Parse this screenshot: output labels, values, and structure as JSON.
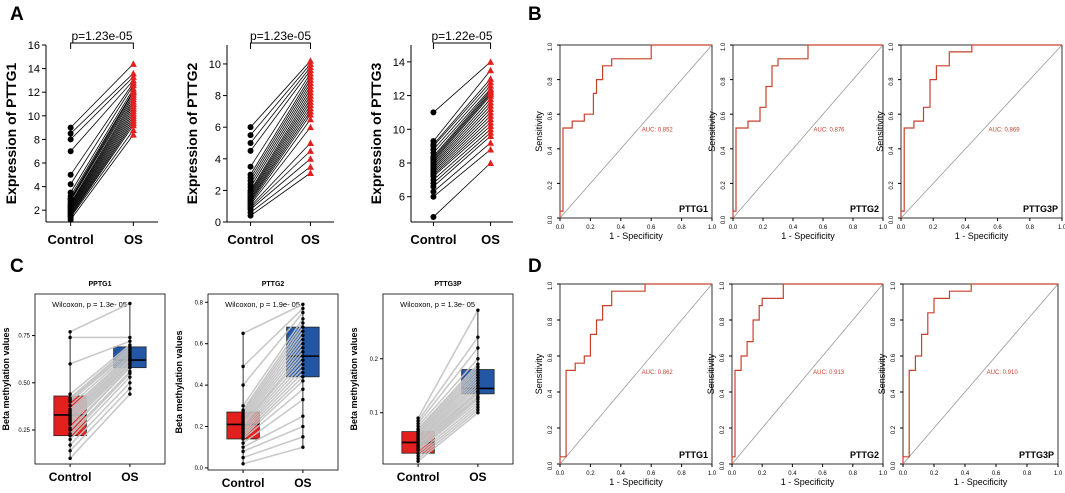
{
  "panels": {
    "A": "A",
    "B": "B",
    "C": "C",
    "D": "D"
  },
  "chart_data": [
    {
      "id": "A1",
      "type": "scatter",
      "subtype": "paired-dot",
      "title": "",
      "ylabel": "Expression of PTTG1",
      "xlabel": "",
      "categories": [
        "Control",
        "OS"
      ],
      "ylim": [
        1,
        16
      ],
      "yticks": [
        2,
        4,
        6,
        8,
        10,
        12,
        14,
        16
      ],
      "p_label": "p=1.23e-05",
      "control": [
        9,
        8.5,
        8,
        7,
        5,
        4.2,
        3.5,
        3.2,
        3,
        2.9,
        2.8,
        2.6,
        2.5,
        2.4,
        2.3,
        2.2,
        2.1,
        2,
        1.9,
        1.8,
        1.7,
        1.6,
        1.5,
        1.4,
        1.2
      ],
      "os": [
        14.4,
        13.6,
        13.3,
        13,
        12.8,
        12.6,
        12.3,
        12.1,
        12,
        11.8,
        11.6,
        11.4,
        11.2,
        11,
        10.8,
        10.6,
        10.4,
        10.2,
        10,
        9.8,
        9.6,
        9.4,
        9.2,
        8.8,
        8.4
      ]
    },
    {
      "id": "A2",
      "type": "scatter",
      "subtype": "paired-dot",
      "title": "",
      "ylabel": "Expression of PTTG2",
      "xlabel": "",
      "categories": [
        "Control",
        "OS"
      ],
      "ylim": [
        0,
        11.2
      ],
      "yticks": [
        0,
        2,
        4,
        6,
        8,
        10
      ],
      "p_label": "p=1.23e-05",
      "control": [
        6,
        5.5,
        5,
        4.5,
        3.5,
        3,
        2.8,
        2.6,
        2.4,
        2.2,
        2,
        1.9,
        1.8,
        1.7,
        1.6,
        1.5,
        1.4,
        1.3,
        1.2,
        1.1,
        1,
        0.9,
        0.8,
        0.6,
        0.4
      ],
      "os": [
        10.2,
        10,
        9.8,
        9.6,
        9.4,
        9.2,
        9,
        8.8,
        8.6,
        8.4,
        8.2,
        8,
        7.8,
        7.6,
        7.4,
        7.2,
        7,
        6.8,
        6.5,
        6,
        5,
        4.5,
        4,
        3.5,
        3.1
      ]
    },
    {
      "id": "A3",
      "type": "scatter",
      "subtype": "paired-dot",
      "title": "",
      "ylabel": "Expression of PTTG3",
      "xlabel": "",
      "categories": [
        "Control",
        "OS"
      ],
      "ylim": [
        4.5,
        15
      ],
      "yticks": [
        6,
        8,
        10,
        12,
        14
      ],
      "p_label": "p=1.22e-05",
      "control": [
        11,
        9.3,
        9.1,
        9,
        8.8,
        8.6,
        8.4,
        8.3,
        8.2,
        8.1,
        8,
        7.9,
        7.8,
        7.7,
        7.6,
        7.5,
        7.4,
        7.3,
        7.2,
        7,
        6.8,
        6.6,
        6.3,
        6,
        4.8
      ],
      "os": [
        14,
        13.5,
        13,
        12.8,
        12.6,
        12.4,
        12.3,
        12.2,
        12.1,
        12,
        11.8,
        11.6,
        11.4,
        11.2,
        11,
        10.8,
        10.6,
        10.4,
        10.2,
        10,
        9.8,
        9.6,
        9.2,
        8.8,
        8
      ]
    },
    {
      "id": "B1",
      "type": "line",
      "subtype": "roc",
      "label": "PTTG1",
      "auc": "AUC: 0.852",
      "xlabel": "1 -  Specificity",
      "ylabel": "Sensitivity",
      "xlim": [
        0,
        1
      ],
      "ylim": [
        0,
        1
      ],
      "xticks": [
        "0.0",
        "0.2",
        "0.4",
        "0.6",
        "0.8",
        "1.0"
      ],
      "yticks": [
        "0.0",
        "0.2",
        "0.4",
        "0.6",
        "0.8",
        "1.0"
      ],
      "x": [
        0,
        0,
        0.02,
        0.02,
        0.08,
        0.08,
        0.16,
        0.16,
        0.22,
        0.22,
        0.24,
        0.24,
        0.28,
        0.28,
        0.34,
        0.34,
        0.6,
        0.6,
        1
      ],
      "y": [
        0,
        0.04,
        0.04,
        0.52,
        0.52,
        0.56,
        0.56,
        0.6,
        0.6,
        0.72,
        0.72,
        0.8,
        0.8,
        0.88,
        0.88,
        0.92,
        0.92,
        1,
        1
      ]
    },
    {
      "id": "B2",
      "type": "line",
      "subtype": "roc",
      "label": "PTTG2",
      "auc": "AUC: 0.876",
      "xlabel": "1 -  Specificity",
      "ylabel": "Sensitivity",
      "xlim": [
        0,
        1
      ],
      "ylim": [
        0,
        1
      ],
      "xticks": [
        "0.0",
        "0.2",
        "0.4",
        "0.6",
        "0.8",
        "1.0"
      ],
      "yticks": [
        "0.0",
        "0.2",
        "0.4",
        "0.6",
        "0.8",
        "1.0"
      ],
      "x": [
        0,
        0,
        0.02,
        0.02,
        0.1,
        0.1,
        0.18,
        0.18,
        0.22,
        0.22,
        0.26,
        0.26,
        0.3,
        0.3,
        0.5,
        0.5,
        1
      ],
      "y": [
        0,
        0.04,
        0.04,
        0.52,
        0.52,
        0.56,
        0.56,
        0.64,
        0.64,
        0.76,
        0.76,
        0.88,
        0.88,
        0.92,
        0.92,
        1,
        1
      ]
    },
    {
      "id": "B3",
      "type": "line",
      "subtype": "roc",
      "label": "PTTG3P",
      "auc": "AUC: 0.869",
      "xlabel": "1 -  Specificity",
      "ylabel": "Sensitivity",
      "xlim": [
        0,
        1
      ],
      "ylim": [
        0,
        1
      ],
      "xticks": [
        "0.0",
        "0.2",
        "0.4",
        "0.6",
        "0.8",
        "1.0"
      ],
      "yticks": [
        "0.0",
        "0.2",
        "0.4",
        "0.6",
        "0.8",
        "1.0"
      ],
      "x": [
        0,
        0,
        0.02,
        0.02,
        0.08,
        0.08,
        0.14,
        0.14,
        0.18,
        0.18,
        0.22,
        0.22,
        0.3,
        0.3,
        0.44,
        0.44,
        1
      ],
      "y": [
        0,
        0.04,
        0.04,
        0.52,
        0.52,
        0.56,
        0.56,
        0.64,
        0.64,
        0.8,
        0.8,
        0.88,
        0.88,
        0.96,
        0.96,
        1,
        1
      ]
    },
    {
      "id": "C1",
      "type": "bar",
      "subtype": "paired-box",
      "title": "PPTG1",
      "ylabel": "Beta methylation values",
      "xlabel": "",
      "categories": [
        "Control",
        "OS"
      ],
      "ylim": [
        0.07,
        0.97
      ],
      "yticks": [
        "0.25",
        "0.50",
        "0.75"
      ],
      "ytick_values": [
        0.25,
        0.5,
        0.75
      ],
      "stat_label": "Wilcoxon, p = 1.3e- 05",
      "boxes": [
        {
          "group": "Control",
          "color": "#e3201e",
          "q1": 0.22,
          "median": 0.33,
          "q3": 0.43,
          "whisker_low": 0.1,
          "whisker_high": 0.77
        },
        {
          "group": "OS",
          "color": "#2357a6",
          "q1": 0.58,
          "median": 0.62,
          "q3": 0.69,
          "whisker_low": 0.44,
          "whisker_high": 0.92
        }
      ],
      "control": [
        0.77,
        0.74,
        0.6,
        0.44,
        0.42,
        0.41,
        0.4,
        0.38,
        0.36,
        0.35,
        0.34,
        0.33,
        0.32,
        0.31,
        0.3,
        0.29,
        0.28,
        0.26,
        0.25,
        0.23,
        0.22,
        0.2,
        0.17,
        0.14,
        0.1
      ],
      "os": [
        0.92,
        0.74,
        0.72,
        0.7,
        0.69,
        0.68,
        0.67,
        0.66,
        0.65,
        0.64,
        0.63,
        0.62,
        0.62,
        0.61,
        0.6,
        0.6,
        0.59,
        0.58,
        0.58,
        0.56,
        0.55,
        0.53,
        0.5,
        0.47,
        0.44
      ]
    },
    {
      "id": "C2",
      "type": "bar",
      "subtype": "paired-box",
      "title": "PTTG2",
      "ylabel": "Beta methylation values",
      "xlabel": "",
      "categories": [
        "Control",
        "OS"
      ],
      "ylim": [
        -0.01,
        0.84
      ],
      "yticks": [
        "0.0",
        "0.2",
        "0.4",
        "0.6",
        "0.8"
      ],
      "ytick_values": [
        0,
        0.2,
        0.4,
        0.6,
        0.8
      ],
      "stat_label": "Wilcoxon, p = 1.9e- 05",
      "boxes": [
        {
          "group": "Control",
          "color": "#e3201e",
          "q1": 0.14,
          "median": 0.21,
          "q3": 0.27,
          "whisker_low": 0.02,
          "whisker_high": 0.65
        },
        {
          "group": "OS",
          "color": "#2357a6",
          "q1": 0.44,
          "median": 0.54,
          "q3": 0.68,
          "whisker_low": 0.1,
          "whisker_high": 0.79
        }
      ],
      "control": [
        0.65,
        0.49,
        0.4,
        0.3,
        0.28,
        0.27,
        0.26,
        0.25,
        0.24,
        0.23,
        0.22,
        0.21,
        0.21,
        0.2,
        0.19,
        0.18,
        0.17,
        0.16,
        0.15,
        0.14,
        0.12,
        0.1,
        0.08,
        0.05,
        0.02
      ],
      "os": [
        0.79,
        0.77,
        0.75,
        0.72,
        0.7,
        0.68,
        0.66,
        0.64,
        0.62,
        0.6,
        0.58,
        0.56,
        0.54,
        0.52,
        0.5,
        0.48,
        0.46,
        0.44,
        0.42,
        0.38,
        0.33,
        0.25,
        0.2,
        0.15,
        0.1
      ]
    },
    {
      "id": "C3",
      "type": "bar",
      "subtype": "paired-box",
      "title": "PTTG3P",
      "ylabel": "Beta methylation values",
      "xlabel": "",
      "categories": [
        "Control",
        "OS"
      ],
      "ylim": [
        0.005,
        0.32
      ],
      "yticks": [
        "0.1",
        "0.2"
      ],
      "ytick_values": [
        0.1,
        0.2
      ],
      "stat_label": "Wilcoxon, p = 1.3e- 05",
      "boxes": [
        {
          "group": "Control",
          "color": "#e3201e",
          "q1": 0.025,
          "median": 0.045,
          "q3": 0.065,
          "whisker_low": 0.01,
          "whisker_high": 0.09
        },
        {
          "group": "OS",
          "color": "#2357a6",
          "q1": 0.135,
          "median": 0.145,
          "q3": 0.18,
          "whisker_low": 0.1,
          "whisker_high": 0.29
        }
      ],
      "control": [
        0.09,
        0.085,
        0.08,
        0.075,
        0.07,
        0.068,
        0.065,
        0.062,
        0.06,
        0.058,
        0.055,
        0.052,
        0.05,
        0.048,
        0.045,
        0.042,
        0.04,
        0.038,
        0.035,
        0.032,
        0.03,
        0.025,
        0.02,
        0.015,
        0.01
      ],
      "os": [
        0.29,
        0.24,
        0.22,
        0.2,
        0.19,
        0.185,
        0.18,
        0.175,
        0.17,
        0.165,
        0.16,
        0.155,
        0.15,
        0.145,
        0.14,
        0.138,
        0.135,
        0.13,
        0.128,
        0.125,
        0.12,
        0.115,
        0.11,
        0.105,
        0.1
      ]
    },
    {
      "id": "D1",
      "type": "line",
      "subtype": "roc",
      "label": "PTTG1",
      "auc": "AUC: 0.862",
      "xlabel": "1 -  Specificity",
      "ylabel": "Sensitivity",
      "xlim": [
        0,
        1
      ],
      "ylim": [
        0,
        1
      ],
      "xticks": [
        "0.0",
        "0.2",
        "0.4",
        "0.6",
        "0.8",
        "1.0"
      ],
      "yticks": [
        "0.0",
        "0.2",
        "0.4",
        "0.6",
        "0.8",
        "1.0"
      ],
      "x": [
        0,
        0,
        0.04,
        0.04,
        0.1,
        0.1,
        0.16,
        0.16,
        0.2,
        0.2,
        0.24,
        0.24,
        0.28,
        0.28,
        0.34,
        0.34,
        0.56,
        0.56,
        1
      ],
      "y": [
        0,
        0.04,
        0.04,
        0.52,
        0.52,
        0.56,
        0.56,
        0.6,
        0.6,
        0.72,
        0.72,
        0.8,
        0.8,
        0.88,
        0.88,
        0.96,
        0.96,
        1,
        1
      ]
    },
    {
      "id": "D2",
      "type": "line",
      "subtype": "roc",
      "label": "PTTG2",
      "auc": "AUC: 0.913",
      "xlabel": "1 -  Specificity",
      "ylabel": "Sensitivity",
      "xlim": [
        0,
        1
      ],
      "ylim": [
        0,
        1
      ],
      "xticks": [
        "0.0",
        "0.2",
        "0.4",
        "0.6",
        "0.8",
        "1.0"
      ],
      "yticks": [
        "0.0",
        "0.2",
        "0.4",
        "0.6",
        "0.8",
        "1.0"
      ],
      "x": [
        0,
        0,
        0.02,
        0.02,
        0.06,
        0.06,
        0.1,
        0.1,
        0.14,
        0.14,
        0.18,
        0.18,
        0.2,
        0.2,
        0.34,
        0.34,
        1
      ],
      "y": [
        0,
        0.04,
        0.04,
        0.52,
        0.52,
        0.6,
        0.6,
        0.68,
        0.68,
        0.8,
        0.8,
        0.88,
        0.88,
        0.92,
        0.92,
        1,
        1
      ]
    },
    {
      "id": "D3",
      "type": "line",
      "subtype": "roc",
      "label": "PTTG3P",
      "auc": "AUC: 0.910",
      "xlabel": "1 -  Specificity",
      "ylabel": "Sensitivity",
      "xlim": [
        0,
        1
      ],
      "ylim": [
        0,
        1
      ],
      "xticks": [
        "0.0",
        "0.2",
        "0.4",
        "0.6",
        "0.8",
        "1.0"
      ],
      "yticks": [
        "0.0",
        "0.2",
        "0.4",
        "0.6",
        "0.8",
        "1.0"
      ],
      "x": [
        0,
        0,
        0.04,
        0.04,
        0.08,
        0.08,
        0.12,
        0.12,
        0.16,
        0.16,
        0.2,
        0.2,
        0.3,
        0.3,
        0.44,
        0.44,
        1
      ],
      "y": [
        0,
        0.04,
        0.04,
        0.52,
        0.52,
        0.6,
        0.6,
        0.72,
        0.72,
        0.84,
        0.84,
        0.92,
        0.92,
        0.96,
        0.96,
        1,
        1
      ]
    }
  ]
}
